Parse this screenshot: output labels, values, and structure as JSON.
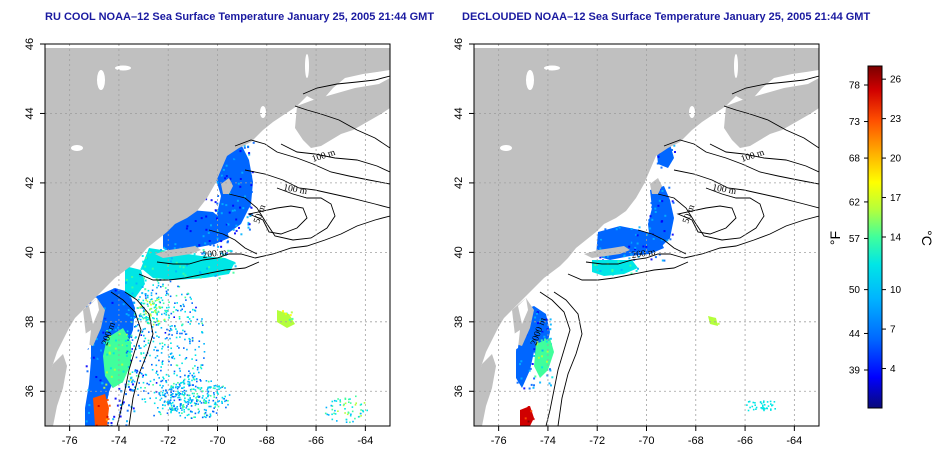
{
  "maps": [
    {
      "id": "left",
      "title": "RU COOL NOAA–12 Sea Surface Temperature January 25, 2005 21:44 GMT",
      "x_ticks": [
        "-76",
        "-74",
        "-72",
        "-70",
        "-68",
        "-66",
        "-64"
      ],
      "y_ticks": [
        "36",
        "38",
        "40",
        "42",
        "44",
        "46"
      ],
      "contour_labels": [
        "100 m",
        "100 m",
        "50 m",
        "200 m",
        "200 m"
      ]
    },
    {
      "id": "right",
      "title": "DECLOUDED NOAA–12 Sea Surface Temperature January 25, 2005 21:44 GMT",
      "x_ticks": [
        "-76",
        "-74",
        "-72",
        "-70",
        "-68",
        "-66",
        "-64"
      ],
      "y_ticks": [
        "36",
        "38",
        "40",
        "42",
        "44",
        "46"
      ],
      "contour_labels": [
        "100 m",
        "100 m",
        "50 m",
        "200 m",
        "2000 m"
      ]
    }
  ],
  "map_extent": {
    "lon": [
      -77,
      -63
    ],
    "lat": [
      35,
      46
    ]
  },
  "colorbar": {
    "fahrenheit_ticks": [
      "78",
      "73",
      "68",
      "62",
      "57",
      "50",
      "44",
      "39"
    ],
    "celsius_ticks": [
      "26",
      "23",
      "20",
      "17",
      "14",
      "10",
      "7",
      "4"
    ],
    "celsius_range": [
      1,
      27
    ],
    "unit_f": "°F",
    "unit_c": "°C"
  },
  "colors": {
    "land": "#c0c0c0",
    "title": "#1a1aa0",
    "gradient": [
      "#0a0a7a",
      "#0000ff",
      "#0066ff",
      "#00b4ff",
      "#00e6e6",
      "#40ff9c",
      "#b4ff3c",
      "#ffff00",
      "#ffb400",
      "#ff5000",
      "#d00000",
      "#7a0000"
    ]
  }
}
